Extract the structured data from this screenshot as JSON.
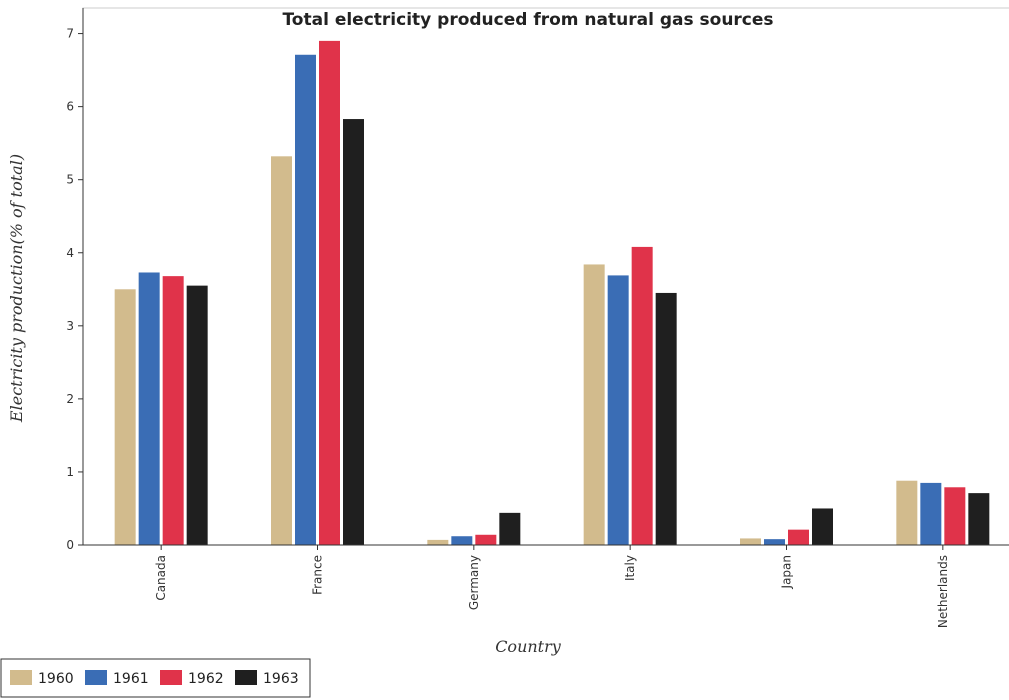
{
  "chart_data": {
    "type": "bar",
    "title": "Total electricity produced from natural gas sources",
    "xlabel": "Country",
    "ylabel": "Electricity production(% of total)",
    "categories": [
      "Canada",
      "France",
      "Germany",
      "Italy",
      "Japan",
      "Netherlands"
    ],
    "series": [
      {
        "name": "1960",
        "color": "#d2bb8d",
        "values": [
          3.5,
          5.32,
          0.07,
          3.84,
          0.09,
          0.88
        ]
      },
      {
        "name": "1961",
        "color": "#3a6db5",
        "values": [
          3.73,
          6.71,
          0.12,
          3.69,
          0.08,
          0.85
        ]
      },
      {
        "name": "1962",
        "color": "#e0334a",
        "values": [
          3.68,
          6.9,
          0.14,
          4.08,
          0.21,
          0.79
        ]
      },
      {
        "name": "1963",
        "color": "#1f1f1f",
        "values": [
          3.55,
          5.83,
          0.44,
          3.45,
          0.5,
          0.71
        ]
      }
    ],
    "ylim": [
      0,
      7.35
    ],
    "yticks": [
      0,
      1,
      2,
      3,
      4,
      5,
      6,
      7
    ],
    "grid": false,
    "legend_position": "bottom-left"
  }
}
